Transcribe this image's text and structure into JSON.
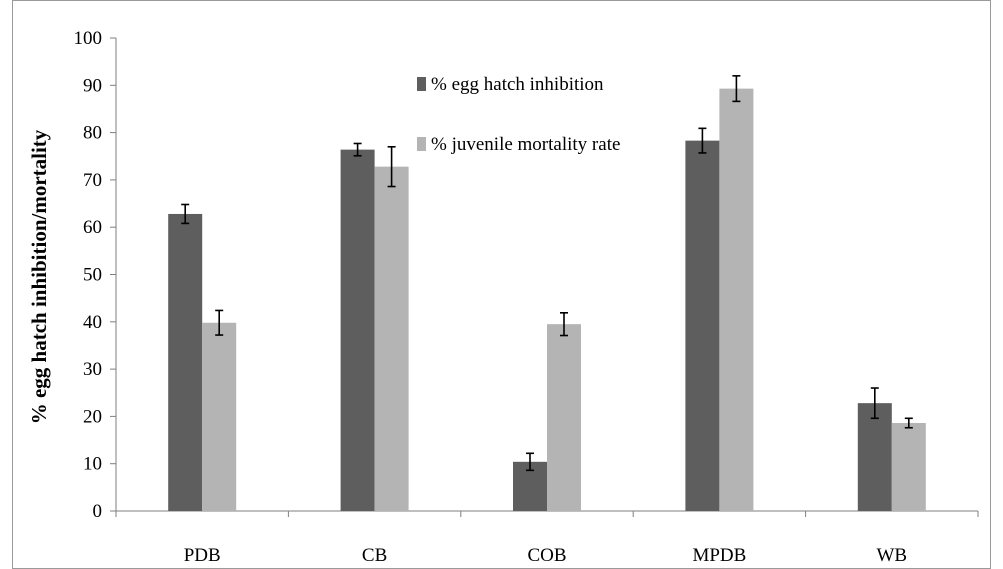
{
  "chart_data": {
    "type": "bar",
    "title": "",
    "xlabel": "",
    "ylabel": "% egg hatch inhibition/mortality",
    "ylim": [
      0,
      100
    ],
    "yticks": [
      0,
      10,
      20,
      30,
      40,
      50,
      60,
      70,
      80,
      90,
      100
    ],
    "grid": false,
    "legend_position": "top-center",
    "categories": [
      "PDB",
      "CB",
      "COB",
      "MPDB",
      "WB"
    ],
    "series": [
      {
        "name": "% egg hatch inhibition",
        "color": "#5e5e5e",
        "values": [
          62.8,
          76.4,
          10.4,
          78.3,
          22.8
        ],
        "errors": [
          2.0,
          1.3,
          1.8,
          2.6,
          3.2
        ]
      },
      {
        "name": "% juvenile mortality rate",
        "color": "#b4b4b4",
        "values": [
          39.8,
          72.8,
          39.5,
          89.3,
          18.6
        ],
        "errors": [
          2.6,
          4.2,
          2.4,
          2.7,
          1.0
        ]
      }
    ]
  }
}
